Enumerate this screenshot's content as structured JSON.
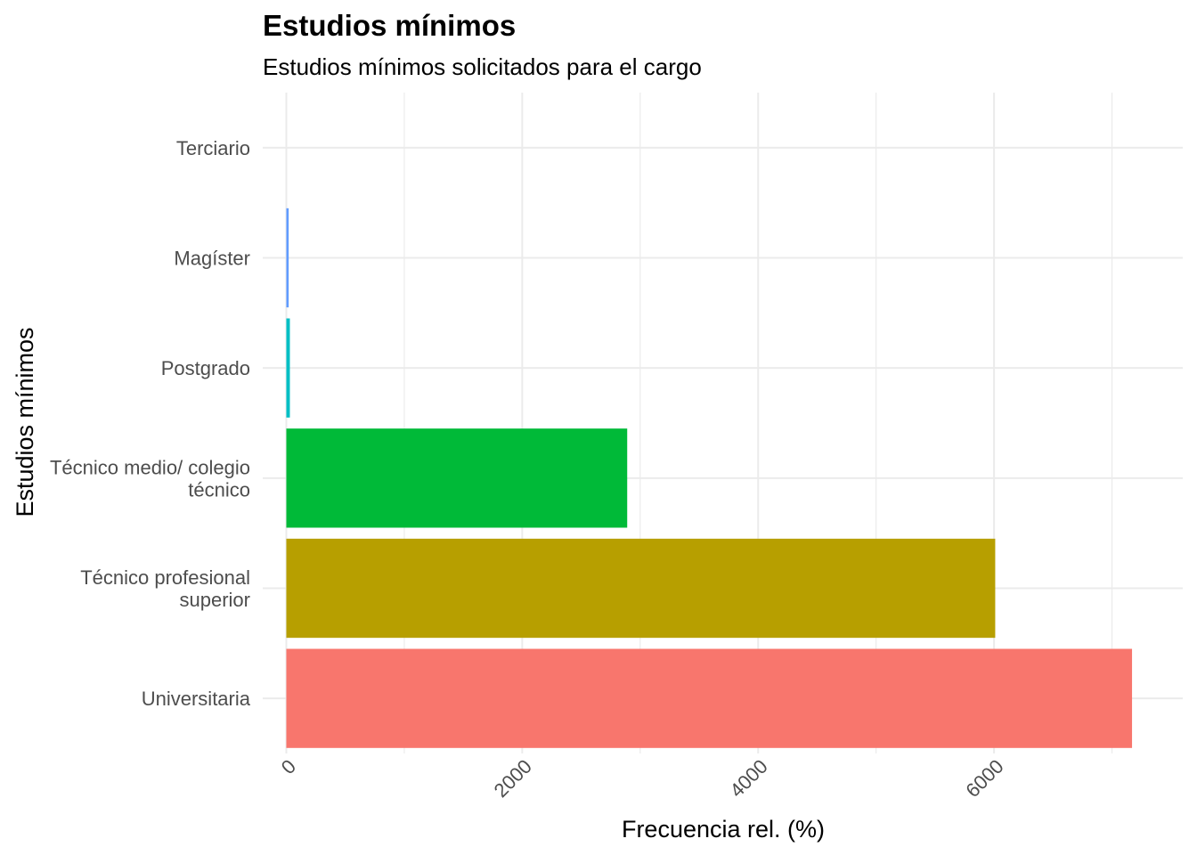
{
  "chart_data": {
    "type": "bar",
    "orientation": "horizontal",
    "title": "Estudios mínimos",
    "subtitle": "Estudios mínimos solicitados para el cargo",
    "xlabel": "Frecuencia rel. (%)",
    "ylabel": "Estudios mínimos",
    "categories": [
      "Universitaria",
      [
        "Técnico profesional",
        "superior"
      ],
      [
        "Técnico medio/ colegio",
        "técnico"
      ],
      "Postgrado",
      "Magíster",
      "Terciario"
    ],
    "values": [
      7170,
      6010,
      2890,
      30,
      20,
      0
    ],
    "colors": [
      "#F8766D",
      "#B79F00",
      "#00BA38",
      "#00BFC4",
      "#619CFF",
      "#F564E3"
    ],
    "xlim": [
      -200,
      7600
    ],
    "xticks": [
      0,
      2000,
      4000,
      6000
    ],
    "xtick_labels": [
      "0",
      "2000",
      "4000",
      "6000"
    ],
    "grid": true,
    "legend": "none"
  }
}
